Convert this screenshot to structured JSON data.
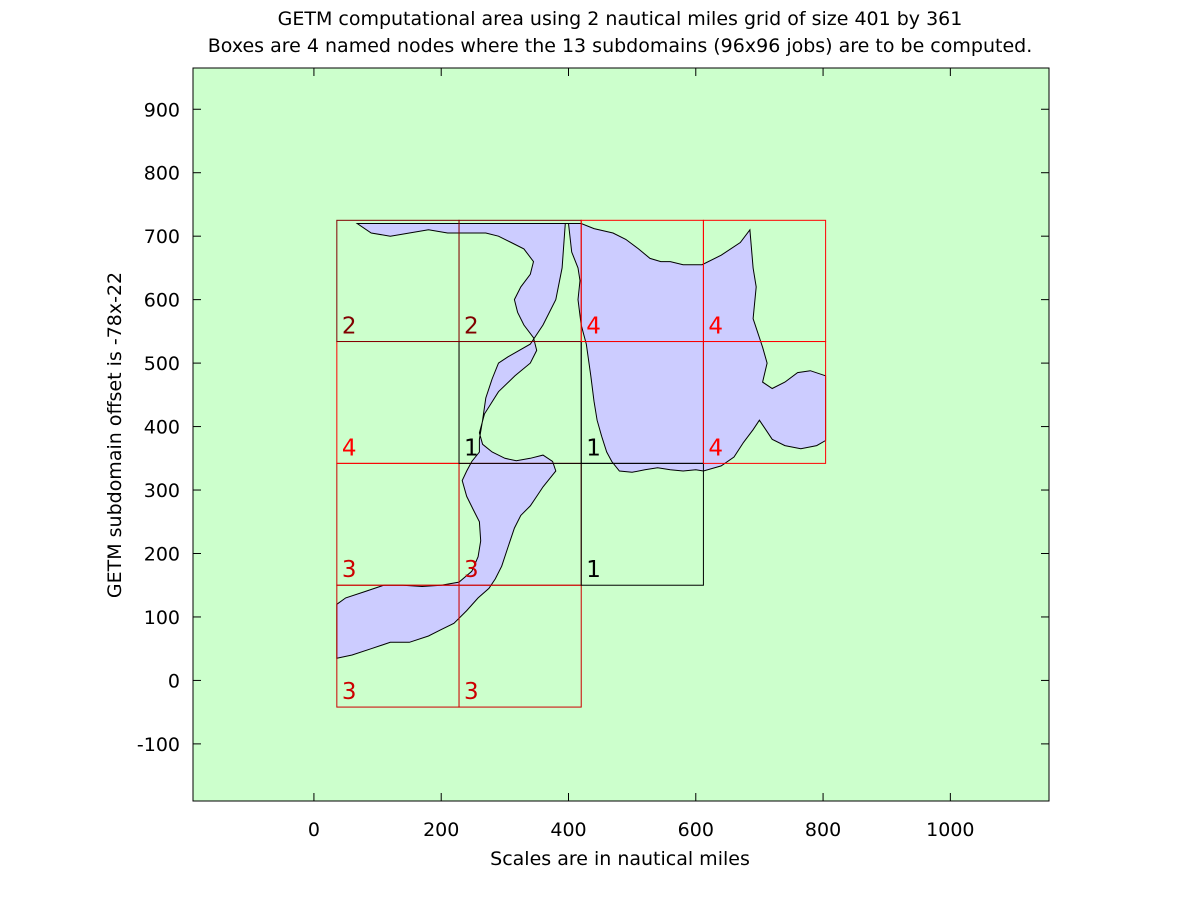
{
  "chart_data": {
    "type": "map-grid",
    "title": "GETM computational area using 2 nautical miles grid of size 401 by 361",
    "subtitle": "Boxes are 4 named nodes where the 13 subdomains (96x96 jobs) are to be computed.",
    "xlabel": "Scales are in nautical miles",
    "ylabel": "GETM subdomain offset is -78x-22",
    "xlim": [
      -190,
      1155
    ],
    "ylim": [
      -190,
      965
    ],
    "xticks": [
      0,
      200,
      400,
      600,
      800,
      1000
    ],
    "yticks": [
      -100,
      0,
      100,
      200,
      300,
      400,
      500,
      600,
      700,
      800,
      900
    ],
    "grid": false,
    "colors": {
      "land": "#ccffcc",
      "sea": "#ccccff",
      "node1": "#000000",
      "node2": "#800000",
      "node3": "#cc0000",
      "node4": "#ff0000"
    },
    "subdomains": [
      {
        "x0": 36,
        "y0": -42,
        "x1": 228,
        "y1": 150,
        "node": "3"
      },
      {
        "x0": 228,
        "y0": -42,
        "x1": 420,
        "y1": 150,
        "node": "3"
      },
      {
        "x0": 36,
        "y0": 150,
        "x1": 228,
        "y1": 342,
        "node": "3"
      },
      {
        "x0": 228,
        "y0": 150,
        "x1": 420,
        "y1": 342,
        "node": "3"
      },
      {
        "x0": 420,
        "y0": 150,
        "x1": 612,
        "y1": 342,
        "node": "1"
      },
      {
        "x0": 36,
        "y0": 342,
        "x1": 228,
        "y1": 534,
        "node": "4"
      },
      {
        "x0": 228,
        "y0": 342,
        "x1": 420,
        "y1": 534,
        "node": "1"
      },
      {
        "x0": 420,
        "y0": 342,
        "x1": 612,
        "y1": 534,
        "node": "1"
      },
      {
        "x0": 612,
        "y0": 342,
        "x1": 804,
        "y1": 534,
        "node": "4"
      },
      {
        "x0": 36,
        "y0": 534,
        "x1": 228,
        "y1": 725,
        "node": "2"
      },
      {
        "x0": 228,
        "y0": 534,
        "x1": 420,
        "y1": 725,
        "node": "2"
      },
      {
        "x0": 420,
        "y0": 534,
        "x1": 612,
        "y1": 725,
        "node": "4"
      },
      {
        "x0": 612,
        "y0": 534,
        "x1": 804,
        "y1": 725,
        "node": "4"
      }
    ],
    "sea_polygons": [
      [
        [
          68,
          720
        ],
        [
          400,
          720
        ],
        [
          405,
          675
        ],
        [
          415,
          650
        ],
        [
          418,
          630
        ],
        [
          415,
          600
        ],
        [
          420,
          560
        ],
        [
          428,
          530
        ],
        [
          435,
          480
        ],
        [
          440,
          440
        ],
        [
          445,
          410
        ],
        [
          452,
          385
        ],
        [
          460,
          360
        ],
        [
          468,
          345
        ],
        [
          480,
          330
        ],
        [
          500,
          328
        ],
        [
          520,
          332
        ],
        [
          540,
          335
        ],
        [
          560,
          332
        ],
        [
          580,
          330
        ],
        [
          600,
          332
        ],
        [
          612,
          330
        ],
        [
          640,
          338
        ],
        [
          660,
          352
        ],
        [
          675,
          375
        ],
        [
          690,
          395
        ],
        [
          700,
          410
        ],
        [
          710,
          395
        ],
        [
          720,
          380
        ],
        [
          740,
          370
        ],
        [
          765,
          365
        ],
        [
          790,
          370
        ],
        [
          804,
          378
        ],
        [
          804,
          480
        ],
        [
          780,
          488
        ],
        [
          760,
          485
        ],
        [
          740,
          470
        ],
        [
          720,
          460
        ],
        [
          705,
          470
        ],
        [
          712,
          500
        ],
        [
          705,
          525
        ],
        [
          690,
          570
        ],
        [
          695,
          620
        ],
        [
          690,
          650
        ],
        [
          685,
          710
        ],
        [
          670,
          690
        ],
        [
          640,
          670
        ],
        [
          610,
          655
        ],
        [
          580,
          655
        ],
        [
          560,
          660
        ],
        [
          545,
          660
        ],
        [
          528,
          665
        ],
        [
          510,
          680
        ],
        [
          490,
          695
        ],
        [
          470,
          705
        ],
        [
          440,
          712
        ],
        [
          420,
          720
        ],
        [
          405,
          720
        ],
        [
          395,
          720
        ],
        [
          390,
          650
        ],
        [
          380,
          600
        ],
        [
          360,
          560
        ],
        [
          340,
          530
        ],
        [
          305,
          510
        ],
        [
          290,
          500
        ],
        [
          280,
          475
        ],
        [
          270,
          445
        ],
        [
          265,
          410
        ],
        [
          260,
          380
        ],
        [
          260,
          360
        ],
        [
          248,
          345
        ],
        [
          240,
          330
        ],
        [
          233,
          315
        ],
        [
          240,
          290
        ],
        [
          250,
          270
        ],
        [
          260,
          250
        ],
        [
          262,
          220
        ],
        [
          258,
          195
        ],
        [
          248,
          172
        ],
        [
          228,
          155
        ],
        [
          200,
          150
        ],
        [
          170,
          148
        ],
        [
          140,
          150
        ],
        [
          110,
          150
        ],
        [
          80,
          140
        ],
        [
          50,
          130
        ],
        [
          36,
          120
        ],
        [
          36,
          35
        ],
        [
          60,
          40
        ],
        [
          90,
          50
        ],
        [
          120,
          60
        ],
        [
          150,
          60
        ],
        [
          180,
          70
        ],
        [
          200,
          80
        ],
        [
          220,
          90
        ],
        [
          240,
          110
        ],
        [
          258,
          130
        ],
        [
          275,
          145
        ],
        [
          285,
          160
        ],
        [
          295,
          180
        ],
        [
          305,
          210
        ],
        [
          315,
          240
        ],
        [
          325,
          260
        ],
        [
          340,
          275
        ],
        [
          350,
          290
        ],
        [
          360,
          305
        ],
        [
          372,
          320
        ],
        [
          380,
          330
        ],
        [
          375,
          345
        ],
        [
          360,
          355
        ],
        [
          340,
          350
        ],
        [
          318,
          346
        ],
        [
          300,
          350
        ],
        [
          280,
          360
        ],
        [
          265,
          372
        ],
        [
          260,
          390
        ],
        [
          268,
          420
        ],
        [
          290,
          455
        ],
        [
          316,
          480
        ],
        [
          340,
          500
        ],
        [
          350,
          520
        ],
        [
          345,
          540
        ],
        [
          330,
          560
        ],
        [
          320,
          580
        ],
        [
          315,
          600
        ],
        [
          325,
          620
        ],
        [
          340,
          640
        ],
        [
          345,
          660
        ],
        [
          330,
          680
        ],
        [
          310,
          690
        ],
        [
          290,
          700
        ],
        [
          270,
          705
        ],
        [
          240,
          705
        ],
        [
          210,
          705
        ],
        [
          180,
          710
        ],
        [
          150,
          705
        ],
        [
          120,
          700
        ],
        [
          90,
          705
        ],
        [
          68,
          720
        ]
      ]
    ]
  }
}
